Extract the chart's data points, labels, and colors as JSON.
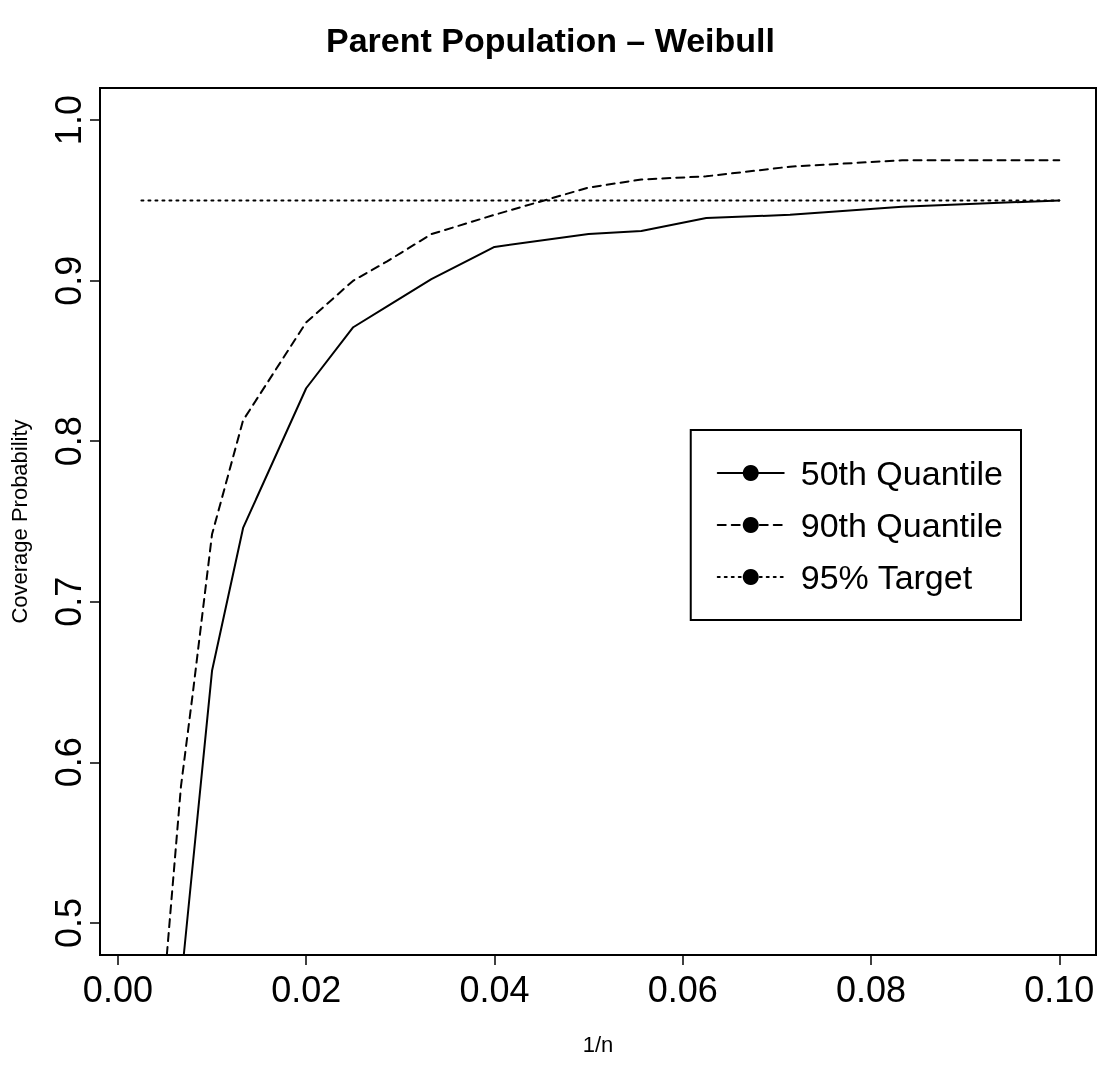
{
  "chart_data": {
    "type": "line",
    "title": "Parent Population – Weibull",
    "xlabel": "1/n",
    "ylabel": "Coverage Probability",
    "xlim": [
      -0.0019,
      0.1039
    ],
    "ylim": [
      0.48,
      1.02
    ],
    "xticks": [
      {
        "value": 0,
        "label": "0.00"
      },
      {
        "value": 0.02,
        "label": "0.02"
      },
      {
        "value": 0.04,
        "label": "0.04"
      },
      {
        "value": 0.06,
        "label": "0.06"
      },
      {
        "value": 0.08,
        "label": "0.08"
      },
      {
        "value": 0.1,
        "label": "0.10"
      }
    ],
    "yticks": [
      {
        "value": 0.5,
        "label": "0.5"
      },
      {
        "value": 0.6,
        "label": "0.6"
      },
      {
        "value": 0.7,
        "label": "0.7"
      },
      {
        "value": 0.8,
        "label": "0.8"
      },
      {
        "value": 0.9,
        "label": "0.9"
      },
      {
        "value": 1,
        "label": "1.0"
      }
    ],
    "series": [
      {
        "name": "50th Quantile",
        "color": "#000000",
        "line_style": "solid",
        "x": [
          0.007,
          0.01,
          0.0133,
          0.02,
          0.025,
          0.0286,
          0.0333,
          0.04,
          0.05,
          0.0556,
          0.0625,
          0.0714,
          0.0833,
          0.1
        ],
        "values": [
          0.48,
          0.657,
          0.746,
          0.833,
          0.871,
          0.884,
          0.901,
          0.921,
          0.929,
          0.931,
          0.939,
          0.941,
          0.946,
          0.95
        ]
      },
      {
        "name": "90th Quantile",
        "color": "#000000",
        "line_style": "dashed",
        "x": [
          0.0052,
          0.0067,
          0.008,
          0.01,
          0.0133,
          0.02,
          0.025,
          0.0286,
          0.0333,
          0.04,
          0.05,
          0.0556,
          0.0625,
          0.0714,
          0.0833,
          0.1
        ],
        "values": [
          0.48,
          0.585,
          0.645,
          0.742,
          0.813,
          0.874,
          0.9,
          0.912,
          0.929,
          0.941,
          0.958,
          0.963,
          0.965,
          0.971,
          0.975,
          0.975
        ]
      },
      {
        "name": "95% Target",
        "color": "#000000",
        "line_style": "dotted",
        "x": [
          0.0025,
          0.1
        ],
        "values": [
          0.95,
          0.95
        ]
      }
    ],
    "marker": "none",
    "grid": false,
    "legend": "right"
  }
}
